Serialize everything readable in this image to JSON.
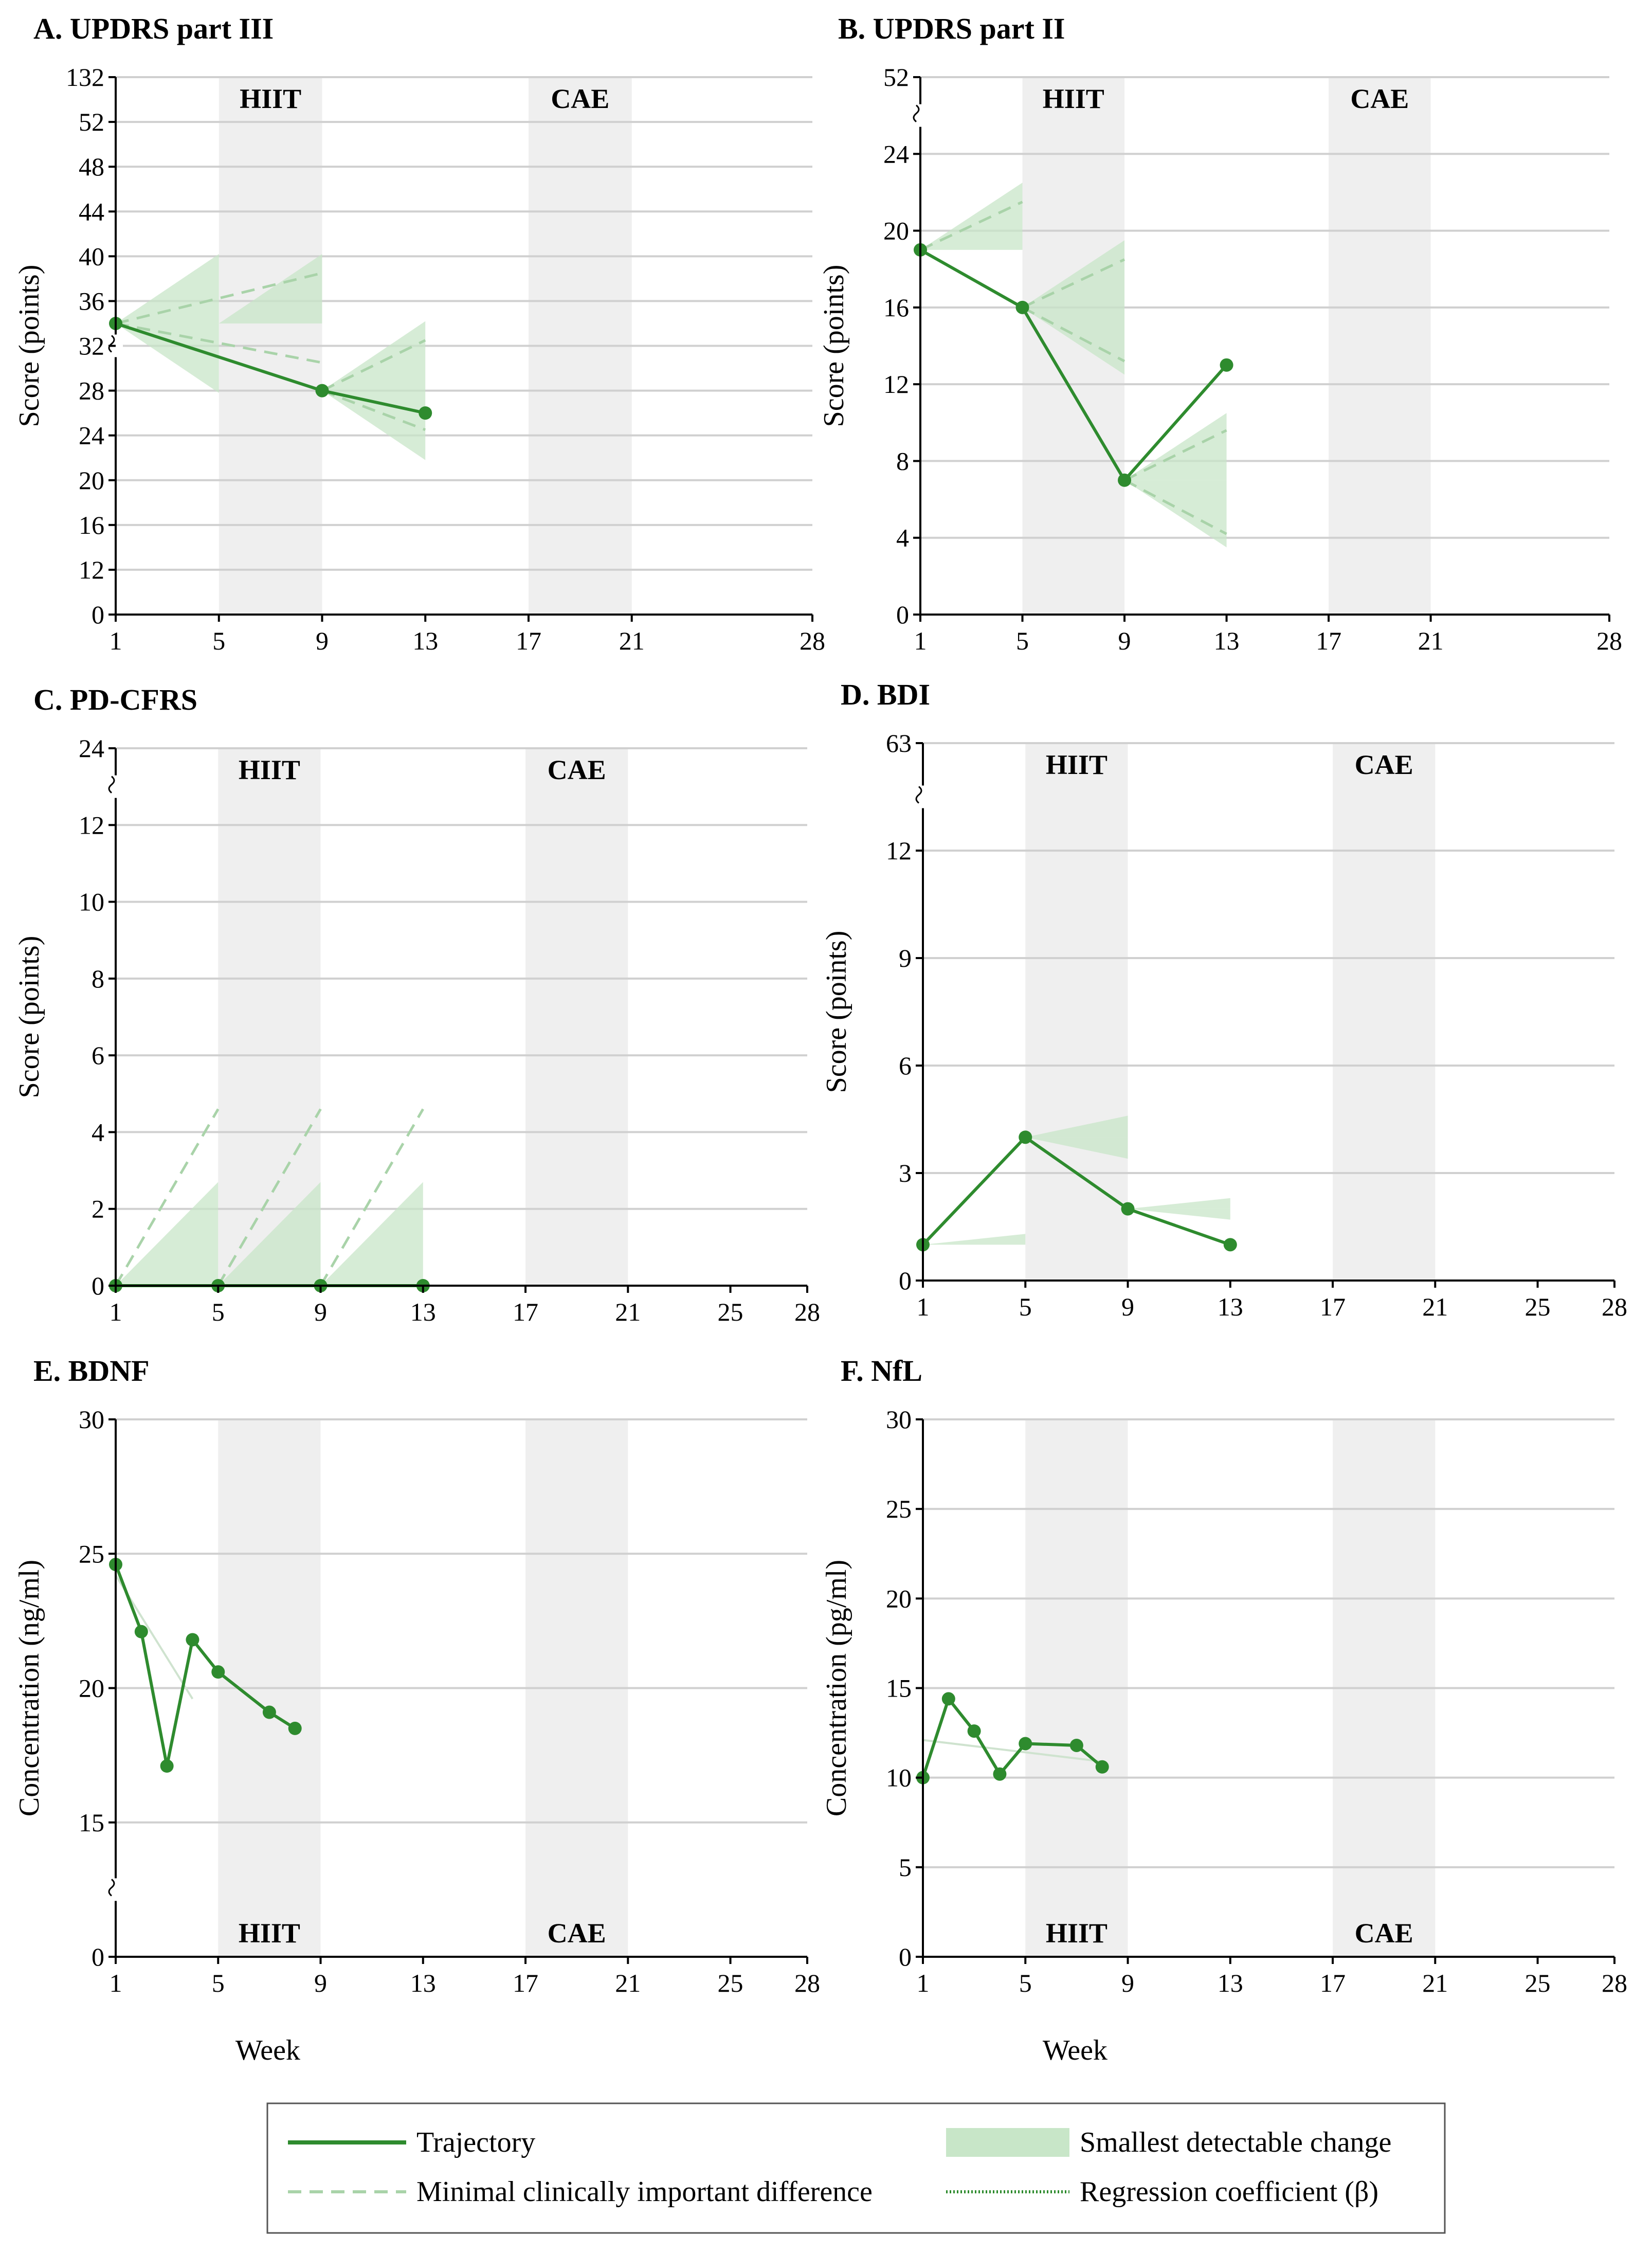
{
  "colors": {
    "trajectory": "#2e8b2e",
    "sdc_fill": "#c8e6c8",
    "mcid": "#a9d3a9",
    "band": "#efefef",
    "grid": "#d0d0d0",
    "regression": "#2e8b2e"
  },
  "legend": {
    "trajectory": "Trajectory",
    "mcid": "Minimal clinically important difference",
    "sdc": "Smallest detectable change",
    "regression": "Regression coefficient (β)"
  },
  "chart_data": [
    {
      "id": "A",
      "type": "line",
      "title": "A. UPDRS part III",
      "ylabel": "Score (points)",
      "xlabel": "",
      "x_ticks": [
        1,
        5,
        9,
        13,
        17,
        21,
        28
      ],
      "y_ticks": [
        0,
        12,
        16,
        20,
        24,
        28,
        32,
        36,
        40,
        44,
        48,
        52,
        132
      ],
      "y_break": {
        "low": 0,
        "high": 132
      },
      "bands": [
        {
          "label": "HIIT",
          "x0": 5,
          "x1": 9,
          "label_pos": "top"
        },
        {
          "label": "CAE",
          "x0": 17,
          "x1": 21,
          "label_pos": "top"
        }
      ],
      "trajectory": {
        "x": [
          1,
          9,
          13
        ],
        "y": [
          34,
          28,
          26
        ]
      },
      "sdc": [
        {
          "x0": 1,
          "x1": 5,
          "y": 34,
          "spread": 6.2,
          "dir": "up"
        },
        {
          "x0": 1,
          "x1": 5,
          "y": 34,
          "spread": 6.2,
          "dir": "down"
        },
        {
          "x0": 5,
          "x1": 9,
          "y": 34,
          "spread": 6.2,
          "dir": "up"
        },
        {
          "x0": 9,
          "x1": 13,
          "y": 28,
          "spread": 6.2,
          "dir": "up"
        },
        {
          "x0": 9,
          "x1": 13,
          "y": 28,
          "spread": 6.2,
          "dir": "down"
        }
      ],
      "mcid": [
        {
          "x0": 1,
          "x1": 9,
          "y0": 34,
          "y1": 38.5
        },
        {
          "x0": 1,
          "x1": 9,
          "y0": 34,
          "y1": 30.5
        },
        {
          "x0": 9,
          "x1": 13,
          "y0": 28,
          "y1": 32.5
        },
        {
          "x0": 9,
          "x1": 13,
          "y0": 28,
          "y1": 24.5
        }
      ],
      "regression": []
    },
    {
      "id": "B",
      "type": "line",
      "title": "B. UPDRS part II",
      "ylabel": "Score (points)",
      "xlabel": "",
      "x_ticks": [
        1,
        5,
        9,
        13,
        17,
        21,
        28
      ],
      "y_ticks": [
        0,
        4,
        8,
        12,
        16,
        20,
        24,
        52
      ],
      "y_break": {
        "low": 24,
        "high": 52
      },
      "bands": [
        {
          "label": "HIIT",
          "x0": 5,
          "x1": 9,
          "label_pos": "top"
        },
        {
          "label": "CAE",
          "x0": 17,
          "x1": 21,
          "label_pos": "top"
        }
      ],
      "trajectory": {
        "x": [
          1,
          5,
          9,
          13
        ],
        "y": [
          19,
          16,
          7,
          13
        ]
      },
      "sdc": [
        {
          "x0": 1,
          "x1": 5,
          "y": 19,
          "spread": 3.5,
          "dir": "up"
        },
        {
          "x0": 5,
          "x1": 9,
          "y": 16,
          "spread": 3.5,
          "dir": "up"
        },
        {
          "x0": 5,
          "x1": 9,
          "y": 16,
          "spread": 3.5,
          "dir": "down"
        },
        {
          "x0": 9,
          "x1": 13,
          "y": 7,
          "spread": 3.5,
          "dir": "up"
        },
        {
          "x0": 9,
          "x1": 13,
          "y": 7,
          "spread": 3.5,
          "dir": "down"
        }
      ],
      "mcid": [
        {
          "x0": 1,
          "x1": 5,
          "y0": 19,
          "y1": 21.5
        },
        {
          "x0": 5,
          "x1": 9,
          "y0": 16,
          "y1": 18.5
        },
        {
          "x0": 5,
          "x1": 9,
          "y0": 16,
          "y1": 13.2
        },
        {
          "x0": 9,
          "x1": 13,
          "y0": 7,
          "y1": 9.6
        },
        {
          "x0": 9,
          "x1": 13,
          "y0": 7,
          "y1": 4.2
        }
      ],
      "regression": []
    },
    {
      "id": "C",
      "type": "line",
      "title": "C. PD-CFRS",
      "ylabel": "Score (points)",
      "xlabel": "",
      "x_ticks": [
        1,
        5,
        9,
        13,
        17,
        21,
        25,
        28
      ],
      "y_ticks": [
        0,
        2,
        4,
        6,
        8,
        10,
        12,
        24
      ],
      "y_break": {
        "low": 12,
        "high": 24
      },
      "bands": [
        {
          "label": "HIIT",
          "x0": 5,
          "x1": 9,
          "label_pos": "top"
        },
        {
          "label": "CAE",
          "x0": 17,
          "x1": 21,
          "label_pos": "top"
        }
      ],
      "trajectory": {
        "x": [
          1,
          5,
          9,
          13
        ],
        "y": [
          0,
          0,
          0,
          0
        ]
      },
      "sdc": [
        {
          "x0": 1,
          "x1": 5,
          "y": 0,
          "spread": 2.7,
          "dir": "up"
        },
        {
          "x0": 5,
          "x1": 9,
          "y": 0,
          "spread": 2.7,
          "dir": "up"
        },
        {
          "x0": 9,
          "x1": 13,
          "y": 0,
          "spread": 2.7,
          "dir": "up"
        }
      ],
      "mcid": [
        {
          "x0": 1,
          "x1": 5,
          "y0": 0,
          "y1": 4.6
        },
        {
          "x0": 5,
          "x1": 9,
          "y0": 0,
          "y1": 4.6
        },
        {
          "x0": 9,
          "x1": 13,
          "y0": 0,
          "y1": 4.6
        }
      ],
      "regression": []
    },
    {
      "id": "D",
      "type": "line",
      "title": "D. BDI",
      "ylabel": "Score (points)",
      "xlabel": "",
      "x_ticks": [
        1,
        5,
        9,
        13,
        17,
        21,
        25,
        28
      ],
      "y_ticks": [
        0,
        3,
        6,
        9,
        12,
        63
      ],
      "y_break": {
        "low": 12,
        "high": 63
      },
      "bands": [
        {
          "label": "HIIT",
          "x0": 5,
          "x1": 9,
          "label_pos": "top"
        },
        {
          "label": "CAE",
          "x0": 17,
          "x1": 21,
          "label_pos": "top"
        }
      ],
      "trajectory": {
        "x": [
          1,
          5,
          9,
          13
        ],
        "y": [
          1,
          4,
          2,
          1
        ]
      },
      "sdc": [
        {
          "x0": 1,
          "x1": 5,
          "y": 1,
          "spread": 0.3,
          "dir": "up"
        },
        {
          "x0": 5,
          "x1": 9,
          "y": 4,
          "spread": 0.6,
          "dir": "up"
        },
        {
          "x0": 5,
          "x1": 9,
          "y": 4,
          "spread": 0.6,
          "dir": "down"
        },
        {
          "x0": 9,
          "x1": 13,
          "y": 2,
          "spread": 0.3,
          "dir": "up"
        },
        {
          "x0": 9,
          "x1": 13,
          "y": 2,
          "spread": 0.3,
          "dir": "down"
        }
      ],
      "mcid": [],
      "regression": []
    },
    {
      "id": "E",
      "type": "line",
      "title": "E. BDNF",
      "ylabel": "Concentration (ng/ml)",
      "xlabel": "Week",
      "x_ticks": [
        1,
        5,
        9,
        13,
        17,
        21,
        25,
        28
      ],
      "y_ticks": [
        0,
        15,
        20,
        25,
        30
      ],
      "y_break": {
        "low": 0,
        "high": 15
      },
      "bands": [
        {
          "label": "HIIT",
          "x0": 5,
          "x1": 9,
          "label_pos": "bottom"
        },
        {
          "label": "CAE",
          "x0": 17,
          "x1": 21,
          "label_pos": "bottom"
        }
      ],
      "trajectory": {
        "x": [
          1,
          2,
          3,
          4,
          5,
          7,
          8
        ],
        "y": [
          24.6,
          22.1,
          17.1,
          21.8,
          20.6,
          19.1,
          18.5
        ]
      },
      "sdc": [],
      "mcid": [],
      "regression": [
        {
          "x0": 1,
          "x1": 4,
          "y0": 24.2,
          "y1": 19.6
        }
      ]
    },
    {
      "id": "F",
      "type": "line",
      "title": "F. NfL",
      "ylabel": "Concentration (pg/ml)",
      "xlabel": "Week",
      "x_ticks": [
        1,
        5,
        9,
        13,
        17,
        21,
        25,
        28
      ],
      "y_ticks": [
        0,
        5,
        10,
        15,
        20,
        25,
        30
      ],
      "y_break": null,
      "bands": [
        {
          "label": "HIIT",
          "x0": 5,
          "x1": 9,
          "label_pos": "bottom"
        },
        {
          "label": "CAE",
          "x0": 17,
          "x1": 21,
          "label_pos": "bottom"
        }
      ],
      "trajectory": {
        "x": [
          1,
          2,
          3,
          4,
          5,
          7,
          8
        ],
        "y": [
          10.0,
          14.4,
          12.6,
          10.2,
          11.9,
          11.8,
          10.6
        ]
      },
      "sdc": [],
      "mcid": [],
      "regression": [
        {
          "x0": 1,
          "x1": 8,
          "y0": 12.1,
          "y1": 10.9
        }
      ]
    }
  ]
}
